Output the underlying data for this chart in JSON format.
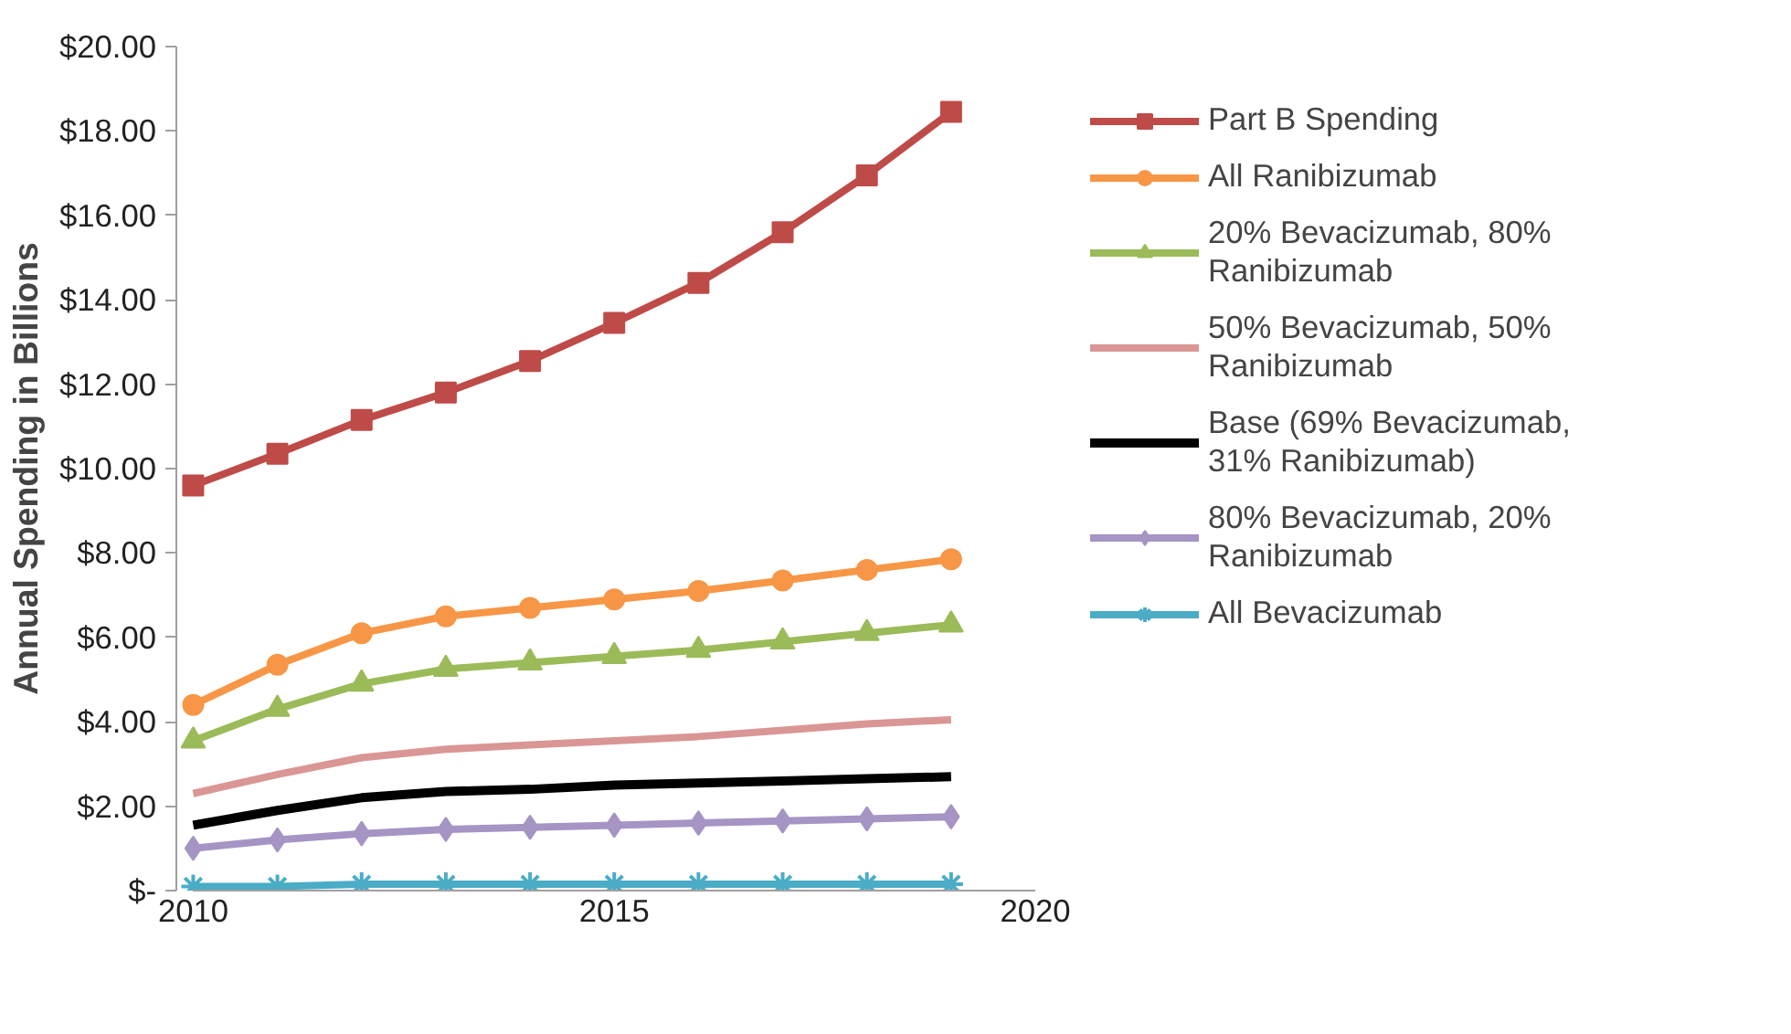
{
  "chart_data": {
    "type": "line",
    "ylabel": "Annual Spending in Billions",
    "x": [
      2010,
      2011,
      2012,
      2013,
      2014,
      2015,
      2016,
      2017,
      2018,
      2019
    ],
    "xlim": [
      2010,
      2020
    ],
    "xticks": [
      2010,
      2015,
      2020
    ],
    "ylim": [
      0,
      20
    ],
    "yticks": [
      {
        "value": 0,
        "label": "$-"
      },
      {
        "value": 2,
        "label": "$2.00"
      },
      {
        "value": 4,
        "label": "$4.00"
      },
      {
        "value": 6,
        "label": "$6.00"
      },
      {
        "value": 8,
        "label": "$8.00"
      },
      {
        "value": 10,
        "label": "$10.00"
      },
      {
        "value": 12,
        "label": "$12.00"
      },
      {
        "value": 14,
        "label": "$14.00"
      },
      {
        "value": 16,
        "label": "$16.00"
      },
      {
        "value": 18,
        "label": "$18.00"
      },
      {
        "value": 20,
        "label": "$20.00"
      }
    ],
    "grid": false,
    "legend": "right",
    "series": [
      {
        "name": "Part B Spending",
        "color": "#be4b48",
        "marker": "square",
        "values": [
          9.6,
          10.35,
          11.15,
          11.8,
          12.55,
          13.45,
          14.4,
          15.6,
          16.95,
          18.45
        ]
      },
      {
        "name": "All Ranibizumab",
        "color": "#f79646",
        "marker": "circle",
        "values": [
          4.4,
          5.35,
          6.1,
          6.5,
          6.7,
          6.9,
          7.1,
          7.35,
          7.6,
          7.85
        ]
      },
      {
        "name": "20% Bevacizumab, 80% Ranibizumab",
        "color": "#9bbb59",
        "marker": "triangle",
        "values": [
          3.55,
          4.3,
          4.9,
          5.25,
          5.4,
          5.55,
          5.7,
          5.9,
          6.1,
          6.3
        ]
      },
      {
        "name": "50% Bevacizumab, 50% Ranibizumab",
        "color": "#d99694",
        "marker": "none",
        "values": [
          2.3,
          2.75,
          3.15,
          3.35,
          3.45,
          3.55,
          3.65,
          3.8,
          3.95,
          4.05
        ]
      },
      {
        "name": "Base (69% Bevacizumab, 31% Ranibizumab)",
        "color": "#000000",
        "marker": "none",
        "values": [
          1.55,
          1.9,
          2.2,
          2.35,
          2.4,
          2.5,
          2.55,
          2.6,
          2.65,
          2.7
        ]
      },
      {
        "name": "80% Bevacizumab, 20% Ranibizumab",
        "color": "#a594c4",
        "marker": "diamond",
        "values": [
          1.0,
          1.2,
          1.35,
          1.45,
          1.5,
          1.55,
          1.6,
          1.65,
          1.7,
          1.75
        ]
      },
      {
        "name": "All Bevacizumab",
        "color": "#4bacc6",
        "marker": "cross",
        "values": [
          0.1,
          0.1,
          0.15,
          0.15,
          0.15,
          0.15,
          0.15,
          0.15,
          0.15,
          0.15
        ]
      }
    ]
  }
}
